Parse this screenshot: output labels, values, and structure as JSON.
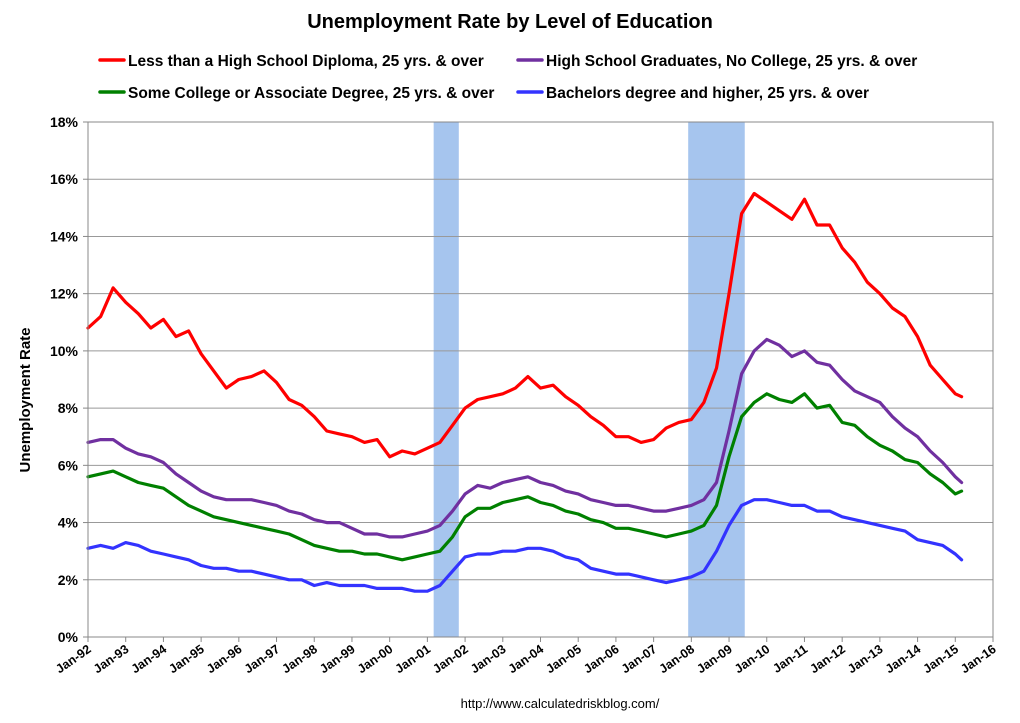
{
  "chart_data": {
    "type": "line",
    "title": "Unemployment Rate by Level of Education",
    "ylabel": "Unemployment Rate",
    "source": "http://www.calculatedriskblog.com/",
    "x_range": [
      "Jan-92",
      "Jan-16"
    ],
    "ylim": [
      0,
      18
    ],
    "y_ticks": [
      0,
      2,
      4,
      6,
      8,
      10,
      12,
      14,
      16,
      18
    ],
    "y_tick_labels": [
      "0%",
      "2%",
      "4%",
      "6%",
      "8%",
      "10%",
      "12%",
      "14%",
      "16%",
      "18%"
    ],
    "x_ticks": [
      "Jan-92",
      "Jan-93",
      "Jan-94",
      "Jan-95",
      "Jan-96",
      "Jan-97",
      "Jan-98",
      "Jan-99",
      "Jan-00",
      "Jan-01",
      "Jan-02",
      "Jan-03",
      "Jan-04",
      "Jan-05",
      "Jan-06",
      "Jan-07",
      "Jan-08",
      "Jan-09",
      "Jan-10",
      "Jan-11",
      "Jan-12",
      "Jan-13",
      "Jan-14",
      "Jan-15",
      "Jan-16"
    ],
    "grid": "horizontal",
    "legend_position": "top",
    "recessions": [
      {
        "start": "Mar-01",
        "end": "Nov-01"
      },
      {
        "start": "Dec-07",
        "end": "Jun-09"
      }
    ],
    "series": [
      {
        "name": "Less than a High School Diploma, 25 yrs. & over",
        "color": "#ff0000",
        "x": [
          "Jan-92",
          "May-92",
          "Sep-92",
          "Jan-93",
          "May-93",
          "Sep-93",
          "Jan-94",
          "May-94",
          "Sep-94",
          "Jan-95",
          "May-95",
          "Sep-95",
          "Jan-96",
          "May-96",
          "Sep-96",
          "Jan-97",
          "May-97",
          "Sep-97",
          "Jan-98",
          "May-98",
          "Sep-98",
          "Jan-99",
          "May-99",
          "Sep-99",
          "Jan-00",
          "May-00",
          "Sep-00",
          "Jan-01",
          "May-01",
          "Sep-01",
          "Jan-02",
          "May-02",
          "Sep-02",
          "Jan-03",
          "May-03",
          "Sep-03",
          "Jan-04",
          "May-04",
          "Sep-04",
          "Jan-05",
          "May-05",
          "Sep-05",
          "Jan-06",
          "May-06",
          "Sep-06",
          "Jan-07",
          "May-07",
          "Sep-07",
          "Jan-08",
          "May-08",
          "Sep-08",
          "Jan-09",
          "May-09",
          "Sep-09",
          "Jan-10",
          "May-10",
          "Sep-10",
          "Jan-11",
          "May-11",
          "Sep-11",
          "Jan-12",
          "May-12",
          "Sep-12",
          "Jan-13",
          "May-13",
          "Sep-13",
          "Jan-14",
          "May-14",
          "Sep-14",
          "Jan-15",
          "Mar-15"
        ],
        "values": [
          10.8,
          11.2,
          12.2,
          11.7,
          11.3,
          10.8,
          11.1,
          10.5,
          10.7,
          9.9,
          9.3,
          8.7,
          9.0,
          9.1,
          9.3,
          8.9,
          8.3,
          8.1,
          7.7,
          7.2,
          7.1,
          7.0,
          6.8,
          6.9,
          6.3,
          6.5,
          6.4,
          6.6,
          6.8,
          7.4,
          8.0,
          8.3,
          8.4,
          8.5,
          8.7,
          9.1,
          8.7,
          8.8,
          8.4,
          8.1,
          7.7,
          7.4,
          7.0,
          7.0,
          6.8,
          6.9,
          7.3,
          7.5,
          7.6,
          8.2,
          9.4,
          12.0,
          14.8,
          15.5,
          15.2,
          14.9,
          14.6,
          15.3,
          14.4,
          14.4,
          13.6,
          13.1,
          12.4,
          12.0,
          11.5,
          11.2,
          10.5,
          9.5,
          9.0,
          8.5,
          8.4
        ]
      },
      {
        "name": "High School Graduates, No College, 25 yrs. & over",
        "color": "#7030a0",
        "x": [
          "Jan-92",
          "May-92",
          "Sep-92",
          "Jan-93",
          "May-93",
          "Sep-93",
          "Jan-94",
          "May-94",
          "Sep-94",
          "Jan-95",
          "May-95",
          "Sep-95",
          "Jan-96",
          "May-96",
          "Sep-96",
          "Jan-97",
          "May-97",
          "Sep-97",
          "Jan-98",
          "May-98",
          "Sep-98",
          "Jan-99",
          "May-99",
          "Sep-99",
          "Jan-00",
          "May-00",
          "Sep-00",
          "Jan-01",
          "May-01",
          "Sep-01",
          "Jan-02",
          "May-02",
          "Sep-02",
          "Jan-03",
          "May-03",
          "Sep-03",
          "Jan-04",
          "May-04",
          "Sep-04",
          "Jan-05",
          "May-05",
          "Sep-05",
          "Jan-06",
          "May-06",
          "Sep-06",
          "Jan-07",
          "May-07",
          "Sep-07",
          "Jan-08",
          "May-08",
          "Sep-08",
          "Jan-09",
          "May-09",
          "Sep-09",
          "Jan-10",
          "May-10",
          "Sep-10",
          "Jan-11",
          "May-11",
          "Sep-11",
          "Jan-12",
          "May-12",
          "Sep-12",
          "Jan-13",
          "May-13",
          "Sep-13",
          "Jan-14",
          "May-14",
          "Sep-14",
          "Jan-15",
          "Mar-15"
        ],
        "values": [
          6.8,
          6.9,
          6.9,
          6.6,
          6.4,
          6.3,
          6.1,
          5.7,
          5.4,
          5.1,
          4.9,
          4.8,
          4.8,
          4.8,
          4.7,
          4.6,
          4.4,
          4.3,
          4.1,
          4.0,
          4.0,
          3.8,
          3.6,
          3.6,
          3.5,
          3.5,
          3.6,
          3.7,
          3.9,
          4.4,
          5.0,
          5.3,
          5.2,
          5.4,
          5.5,
          5.6,
          5.4,
          5.3,
          5.1,
          5.0,
          4.8,
          4.7,
          4.6,
          4.6,
          4.5,
          4.4,
          4.4,
          4.5,
          4.6,
          4.8,
          5.4,
          7.2,
          9.2,
          10.0,
          10.4,
          10.2,
          9.8,
          10.0,
          9.6,
          9.5,
          9.0,
          8.6,
          8.4,
          8.2,
          7.7,
          7.3,
          7.0,
          6.5,
          6.1,
          5.6,
          5.4
        ]
      },
      {
        "name": "Some College or Associate Degree, 25 yrs. & over",
        "color": "#008000",
        "x": [
          "Jan-92",
          "May-92",
          "Sep-92",
          "Jan-93",
          "May-93",
          "Sep-93",
          "Jan-94",
          "May-94",
          "Sep-94",
          "Jan-95",
          "May-95",
          "Sep-95",
          "Jan-96",
          "May-96",
          "Sep-96",
          "Jan-97",
          "May-97",
          "Sep-97",
          "Jan-98",
          "May-98",
          "Sep-98",
          "Jan-99",
          "May-99",
          "Sep-99",
          "Jan-00",
          "May-00",
          "Sep-00",
          "Jan-01",
          "May-01",
          "Sep-01",
          "Jan-02",
          "May-02",
          "Sep-02",
          "Jan-03",
          "May-03",
          "Sep-03",
          "Jan-04",
          "May-04",
          "Sep-04",
          "Jan-05",
          "May-05",
          "Sep-05",
          "Jan-06",
          "May-06",
          "Sep-06",
          "Jan-07",
          "May-07",
          "Sep-07",
          "Jan-08",
          "May-08",
          "Sep-08",
          "Jan-09",
          "May-09",
          "Sep-09",
          "Jan-10",
          "May-10",
          "Sep-10",
          "Jan-11",
          "May-11",
          "Sep-11",
          "Jan-12",
          "May-12",
          "Sep-12",
          "Jan-13",
          "May-13",
          "Sep-13",
          "Jan-14",
          "May-14",
          "Sep-14",
          "Jan-15",
          "Mar-15"
        ],
        "values": [
          5.6,
          5.7,
          5.8,
          5.6,
          5.4,
          5.3,
          5.2,
          4.9,
          4.6,
          4.4,
          4.2,
          4.1,
          4.0,
          3.9,
          3.8,
          3.7,
          3.6,
          3.4,
          3.2,
          3.1,
          3.0,
          3.0,
          2.9,
          2.9,
          2.8,
          2.7,
          2.8,
          2.9,
          3.0,
          3.5,
          4.2,
          4.5,
          4.5,
          4.7,
          4.8,
          4.9,
          4.7,
          4.6,
          4.4,
          4.3,
          4.1,
          4.0,
          3.8,
          3.8,
          3.7,
          3.6,
          3.5,
          3.6,
          3.7,
          3.9,
          4.6,
          6.3,
          7.7,
          8.2,
          8.5,
          8.3,
          8.2,
          8.5,
          8.0,
          8.1,
          7.5,
          7.4,
          7.0,
          6.7,
          6.5,
          6.2,
          6.1,
          5.7,
          5.4,
          5.0,
          5.1
        ]
      },
      {
        "name": "Bachelors degree and higher, 25 yrs. & over",
        "color": "#3333ff",
        "x": [
          "Jan-92",
          "May-92",
          "Sep-92",
          "Jan-93",
          "May-93",
          "Sep-93",
          "Jan-94",
          "May-94",
          "Sep-94",
          "Jan-95",
          "May-95",
          "Sep-95",
          "Jan-96",
          "May-96",
          "Sep-96",
          "Jan-97",
          "May-97",
          "Sep-97",
          "Jan-98",
          "May-98",
          "Sep-98",
          "Jan-99",
          "May-99",
          "Sep-99",
          "Jan-00",
          "May-00",
          "Sep-00",
          "Jan-01",
          "May-01",
          "Sep-01",
          "Jan-02",
          "May-02",
          "Sep-02",
          "Jan-03",
          "May-03",
          "Sep-03",
          "Jan-04",
          "May-04",
          "Sep-04",
          "Jan-05",
          "May-05",
          "Sep-05",
          "Jan-06",
          "May-06",
          "Sep-06",
          "Jan-07",
          "May-07",
          "Sep-07",
          "Jan-08",
          "May-08",
          "Sep-08",
          "Jan-09",
          "May-09",
          "Sep-09",
          "Jan-10",
          "May-10",
          "Sep-10",
          "Jan-11",
          "May-11",
          "Sep-11",
          "Jan-12",
          "May-12",
          "Sep-12",
          "Jan-13",
          "May-13",
          "Sep-13",
          "Jan-14",
          "May-14",
          "Sep-14",
          "Jan-15",
          "Mar-15"
        ],
        "values": [
          3.1,
          3.2,
          3.1,
          3.3,
          3.2,
          3.0,
          2.9,
          2.8,
          2.7,
          2.5,
          2.4,
          2.4,
          2.3,
          2.3,
          2.2,
          2.1,
          2.0,
          2.0,
          1.8,
          1.9,
          1.8,
          1.8,
          1.8,
          1.7,
          1.7,
          1.7,
          1.6,
          1.6,
          1.8,
          2.3,
          2.8,
          2.9,
          2.9,
          3.0,
          3.0,
          3.1,
          3.1,
          3.0,
          2.8,
          2.7,
          2.4,
          2.3,
          2.2,
          2.2,
          2.1,
          2.0,
          1.9,
          2.0,
          2.1,
          2.3,
          3.0,
          3.9,
          4.6,
          4.8,
          4.8,
          4.7,
          4.6,
          4.6,
          4.4,
          4.4,
          4.2,
          4.1,
          4.0,
          3.9,
          3.8,
          3.7,
          3.4,
          3.3,
          3.2,
          2.9,
          2.7
        ]
      }
    ]
  }
}
